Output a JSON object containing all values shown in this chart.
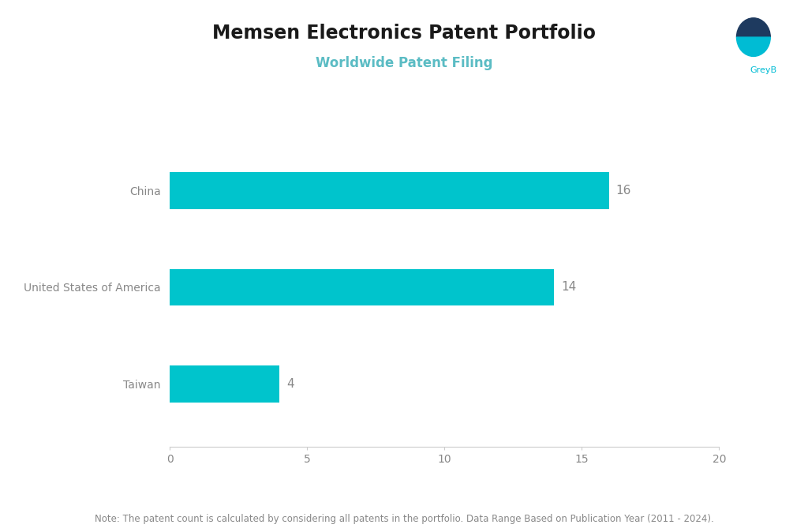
{
  "title": "Memsen Electronics Patent Portfolio",
  "subtitle": "Worldwide Patent Filing",
  "categories": [
    "China",
    "United States of America",
    "Taiwan"
  ],
  "values": [
    16,
    14,
    4
  ],
  "bar_color": "#00C4CC",
  "label_color": "#888888",
  "value_color": "#888888",
  "title_color": "#1a1a1a",
  "subtitle_color": "#5BBCC4",
  "background_color": "#ffffff",
  "xlim": [
    0,
    20
  ],
  "xticks": [
    0,
    5,
    10,
    15,
    20
  ],
  "note": "Note: The patent count is calculated by considering all patents in the portfolio. Data Range Based on Publication Year (2011 - 2024).",
  "title_fontsize": 17,
  "subtitle_fontsize": 12,
  "label_fontsize": 10,
  "value_fontsize": 11,
  "note_fontsize": 8.5,
  "bar_height": 0.38
}
